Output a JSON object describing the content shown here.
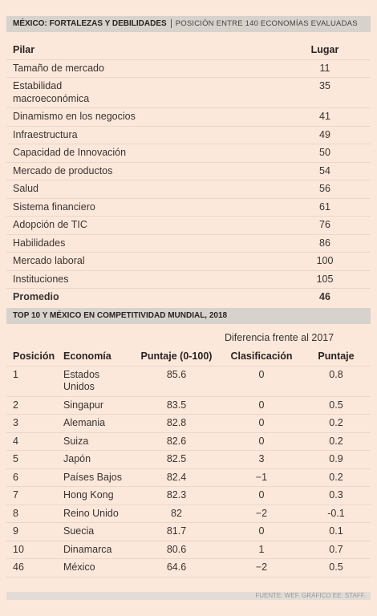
{
  "header": {
    "title": "MÉXICO: FORTALEZAS Y DEBILIDADES",
    "subtitle": "POSICIÓN ENTRE 140 ECONOMÍAS EVALUADAS"
  },
  "table": {
    "columns": [
      "Pilar",
      "Lugar"
    ],
    "rows": [
      [
        "Tamaño de mercado",
        "11"
      ],
      [
        "Estabilidad macroeconómica",
        "35"
      ],
      [
        "Dinamismo en los negocios",
        "41"
      ],
      [
        "Infraestructura",
        "49"
      ],
      [
        "Capacidad de Innovación",
        "50"
      ],
      [
        "Mercado de productos",
        "54"
      ],
      [
        "Salud",
        "56"
      ],
      [
        "Sistema financiero",
        "61"
      ],
      [
        "Adopción de TIC",
        "76"
      ],
      [
        "Habilidades",
        "86"
      ],
      [
        "Mercado laboral",
        "100"
      ],
      [
        "Instituciones",
        "105"
      ],
      [
        "Promedio",
        "46"
      ]
    ]
  },
  "ranking": {
    "title": "TOP 10 Y MÉXICO EN COMPETITIVIDAD MUNDIAL, 2018",
    "group_header": "Diferencia frente al 2017",
    "columns": [
      "Posición",
      "Economía",
      "Puntaje (0-100)",
      "Clasificación",
      "Puntaje"
    ],
    "rows": [
      [
        "1",
        "Estados Unidos",
        "85.6",
        "0",
        "0.8"
      ],
      [
        "2",
        "Singapur",
        "83.5",
        "0",
        "0.5"
      ],
      [
        "3",
        "Alemania",
        "82.8",
        "0",
        "0.2"
      ],
      [
        "4",
        "Suiza",
        "82.6",
        "0",
        "0.2"
      ],
      [
        "5",
        "Japón",
        "82.5",
        "3",
        "0.9"
      ],
      [
        "6",
        "Países Bajos",
        "82.4",
        "−1",
        "0.2"
      ],
      [
        "7",
        "Hong Kong",
        "82.3",
        "0",
        "0.3"
      ],
      [
        "8",
        "Reino Unido",
        "82",
        "−2",
        "-0.1"
      ],
      [
        "9",
        "Suecia",
        "81.7",
        "0",
        "0.1"
      ],
      [
        "10",
        "Dinamarca",
        "80.6",
        "1",
        "0.7"
      ],
      [
        "46",
        "México",
        "64.6",
        "−2",
        "0.5"
      ]
    ]
  },
  "footer": {
    "source": "FUENTE: WEF. GRÁFICO EE: STAFF."
  }
}
